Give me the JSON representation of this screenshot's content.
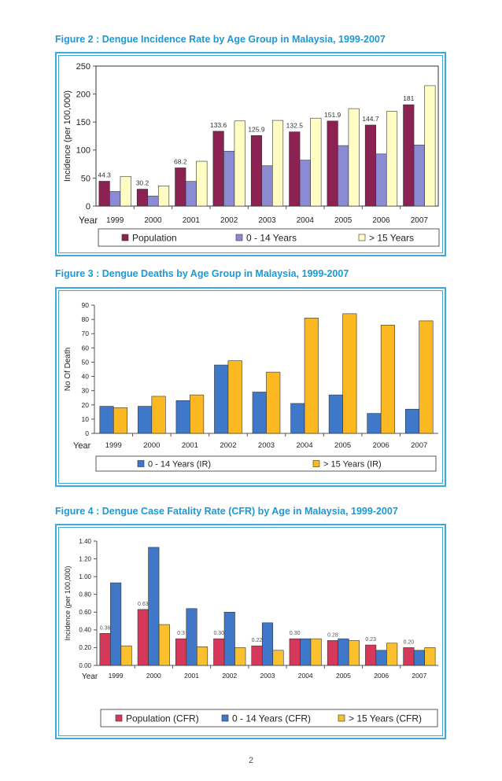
{
  "page_number": "2",
  "chart_data": [
    {
      "type": "bar",
      "title": "Figure 2 : Dengue Incidence Rate by Age Group in Malaysia, 1999-2007",
      "xlabel": "Year",
      "ylabel": "Incidence (per 100,000)",
      "ylim": [
        0,
        250
      ],
      "yticks": [
        "0",
        "50",
        "100",
        "150",
        "200",
        "250"
      ],
      "categories": [
        "1999",
        "2000",
        "2001",
        "2002",
        "2003",
        "2004",
        "2005",
        "2006",
        "2007"
      ],
      "grid": false,
      "legend": "bottom",
      "series": [
        {
          "name": "Population",
          "color": "#8b2252",
          "values": [
            44.3,
            30.2,
            68.2,
            133.6,
            125.9,
            132.5,
            151.9,
            144.7,
            181
          ],
          "labels": [
            "44.3",
            "30.2",
            "68.2",
            "133.6",
            "125.9",
            "132.5",
            "151.9",
            "144.7",
            "181"
          ]
        },
        {
          "name": "0 - 14 Years",
          "color": "#8b8bd4",
          "values": [
            26,
            18,
            44,
            98,
            72,
            82,
            108,
            93,
            109
          ]
        },
        {
          "name": "> 15 Years",
          "color": "#fffdc4",
          "values": [
            53,
            36,
            80,
            152,
            153,
            157,
            174,
            169,
            215
          ]
        }
      ]
    },
    {
      "type": "bar",
      "title": "Figure 3 : Dengue Deaths by Age Group in Malaysia, 1999-2007",
      "xlabel": "Year",
      "ylabel": "No Of Death",
      "ylim": [
        0,
        90
      ],
      "yticks": [
        "0",
        "10",
        "20",
        "30",
        "40",
        "50",
        "60",
        "70",
        "80",
        "90"
      ],
      "categories": [
        "1999",
        "2000",
        "2001",
        "2002",
        "2003",
        "2004",
        "2005",
        "2006",
        "2007"
      ],
      "grid": false,
      "legend": "bottom",
      "series": [
        {
          "name": "0 - 14 Years (IR)",
          "color": "#3f78c8",
          "values": [
            19,
            19,
            23,
            48,
            29,
            21,
            27,
            14,
            17
          ]
        },
        {
          "name": "> 15 Years (IR)",
          "color": "#fbb820",
          "values": [
            18,
            26,
            27,
            51,
            43,
            81,
            84,
            76,
            79
          ]
        }
      ]
    },
    {
      "type": "bar",
      "title": "Figure 4 : Dengue Case Fatality Rate (CFR) by Age in Malaysia, 1999-2007",
      "xlabel": "Year",
      "ylabel": "Incidence (per 100,000)",
      "ylim": [
        0,
        1.4
      ],
      "yticks": [
        "0.00",
        "0.20",
        "0.40",
        "0.60",
        "0.80",
        "1.00",
        "1.20",
        "1.40"
      ],
      "categories": [
        "1999",
        "2000",
        "2001",
        "2002",
        "2003",
        "2004",
        "2005",
        "2006",
        "2007"
      ],
      "grid": false,
      "legend": "bottom",
      "series": [
        {
          "name": "Population (CFR)",
          "color": "#d6385a",
          "values": [
            0.36,
            0.63,
            0.3,
            0.3,
            0.22,
            0.3,
            0.28,
            0.23,
            0.2
          ],
          "labels": [
            "0.36",
            "0.63",
            "0.3",
            "0.30",
            "0.22",
            "0.30",
            "0.28",
            "0.23",
            "0.20"
          ]
        },
        {
          "name": "0 - 14 Years (CFR)",
          "color": "#3f78c8",
          "values": [
            0.93,
            1.33,
            0.64,
            0.6,
            0.48,
            0.3,
            0.3,
            0.17,
            0.17
          ]
        },
        {
          "name": "> 15 Years (CFR)",
          "color": "#fbc02d",
          "values": [
            0.22,
            0.46,
            0.21,
            0.2,
            0.17,
            0.3,
            0.28,
            0.25,
            0.2
          ]
        }
      ]
    }
  ]
}
